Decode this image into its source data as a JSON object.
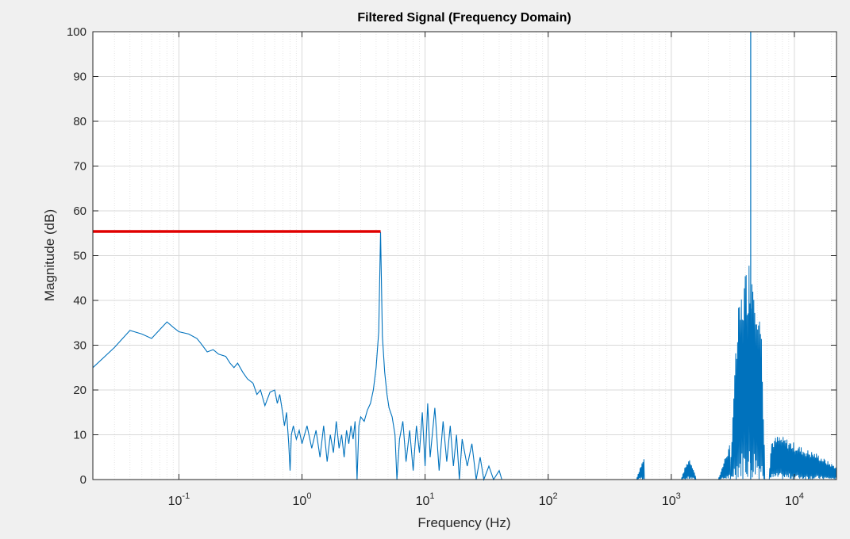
{
  "chart_data": {
    "type": "line",
    "title": "Filtered Signal (Frequency Domain)",
    "xlabel": "Frequency (Hz)",
    "ylabel": "Magnitude (dB)",
    "xscale": "log",
    "xlim": [
      0.02,
      22000
    ],
    "ylim": [
      0,
      100
    ],
    "grid": true,
    "minor_grid": true,
    "x_ticks": [
      {
        "value": 0.1,
        "base": "10",
        "exp": "-1"
      },
      {
        "value": 1,
        "base": "10",
        "exp": "0"
      },
      {
        "value": 10,
        "base": "10",
        "exp": "1"
      },
      {
        "value": 100,
        "base": "10",
        "exp": "2"
      },
      {
        "value": 1000,
        "base": "10",
        "exp": "3"
      },
      {
        "value": 10000,
        "base": "10",
        "exp": "4"
      }
    ],
    "y_ticks": [
      {
        "value": 0,
        "label": "0"
      },
      {
        "value": 10,
        "label": "10"
      },
      {
        "value": 20,
        "label": "20"
      },
      {
        "value": 30,
        "label": "30"
      },
      {
        "value": 40,
        "label": "40"
      },
      {
        "value": 50,
        "label": "50"
      },
      {
        "value": 60,
        "label": "60"
      },
      {
        "value": 70,
        "label": "70"
      },
      {
        "value": 80,
        "label": "80"
      },
      {
        "value": 90,
        "label": "90"
      },
      {
        "value": 100,
        "label": "100"
      }
    ],
    "colors": {
      "spectrum": "#0072bd",
      "marker": "#e00000",
      "grid": "#d9d9d9",
      "axes": "#262626",
      "background": "#ffffff"
    },
    "series": [
      {
        "style": "line",
        "points": [
          [
            0.02,
            25
          ],
          [
            0.03,
            29.5
          ],
          [
            0.04,
            33.3
          ],
          [
            0.05,
            32.5
          ],
          [
            0.06,
            31.5
          ],
          [
            0.07,
            33.5
          ],
          [
            0.08,
            35.2
          ],
          [
            0.09,
            34
          ],
          [
            0.1,
            33
          ],
          [
            0.12,
            32.5
          ],
          [
            0.14,
            31.5
          ],
          [
            0.15,
            30.5
          ],
          [
            0.17,
            28.5
          ],
          [
            0.19,
            29
          ],
          [
            0.21,
            28
          ],
          [
            0.24,
            27.5
          ],
          [
            0.26,
            26
          ],
          [
            0.28,
            25
          ],
          [
            0.3,
            26
          ],
          [
            0.33,
            24
          ],
          [
            0.36,
            22.5
          ],
          [
            0.4,
            21.5
          ],
          [
            0.43,
            19
          ],
          [
            0.46,
            20
          ],
          [
            0.5,
            16.5
          ],
          [
            0.55,
            19.5
          ],
          [
            0.6,
            20
          ],
          [
            0.63,
            17
          ],
          [
            0.66,
            19
          ],
          [
            0.7,
            14.5
          ],
          [
            0.72,
            12
          ],
          [
            0.75,
            15
          ],
          [
            0.78,
            8
          ],
          [
            0.8,
            2
          ],
          [
            0.82,
            10
          ],
          [
            0.85,
            12
          ],
          [
            0.9,
            9
          ],
          [
            0.95,
            11
          ],
          [
            1.0,
            8
          ],
          [
            1.1,
            12
          ],
          [
            1.2,
            7
          ],
          [
            1.3,
            11
          ],
          [
            1.4,
            5
          ],
          [
            1.5,
            12
          ],
          [
            1.6,
            4
          ],
          [
            1.7,
            10
          ],
          [
            1.8,
            6
          ],
          [
            1.9,
            13
          ],
          [
            2.0,
            7
          ],
          [
            2.1,
            10
          ],
          [
            2.2,
            5
          ],
          [
            2.3,
            11
          ],
          [
            2.4,
            8
          ],
          [
            2.5,
            12
          ],
          [
            2.6,
            9
          ],
          [
            2.7,
            13
          ],
          [
            2.8,
            0
          ],
          [
            2.9,
            12
          ],
          [
            3.0,
            14
          ],
          [
            3.2,
            13
          ],
          [
            3.4,
            15.5
          ],
          [
            3.6,
            17
          ],
          [
            3.8,
            20
          ],
          [
            4.0,
            25
          ],
          [
            4.2,
            33
          ],
          [
            4.35,
            55.3
          ],
          [
            4.5,
            32
          ],
          [
            4.7,
            24
          ],
          [
            4.9,
            19
          ],
          [
            5.1,
            16
          ],
          [
            5.4,
            14
          ],
          [
            5.7,
            10
          ],
          [
            5.9,
            0
          ],
          [
            6.2,
            9
          ],
          [
            6.6,
            13
          ],
          [
            7.0,
            4
          ],
          [
            7.5,
            11
          ],
          [
            8.0,
            2
          ],
          [
            8.5,
            12
          ],
          [
            9.0,
            6
          ],
          [
            9.5,
            15
          ],
          [
            10,
            3
          ],
          [
            10.5,
            17
          ],
          [
            11,
            5
          ],
          [
            12,
            16
          ],
          [
            13,
            2
          ],
          [
            14,
            13
          ],
          [
            15,
            4
          ],
          [
            16,
            12
          ],
          [
            17,
            3
          ],
          [
            18,
            10
          ],
          [
            19,
            0
          ],
          [
            20,
            9
          ],
          [
            22,
            3
          ],
          [
            24,
            8
          ],
          [
            26,
            0
          ],
          [
            28,
            5
          ],
          [
            30,
            0
          ],
          [
            33,
            3
          ],
          [
            36,
            0
          ],
          [
            40,
            2
          ],
          [
            42,
            0
          ],
          [
            600,
            0
          ]
        ]
      },
      {
        "style": "band",
        "bands": [
          {
            "x": [
              520,
              610
            ],
            "envelope": [
              [
                520,
                0
              ],
              [
                560,
                3
              ],
              [
                600,
                5
              ],
              [
                640,
                0
              ]
            ]
          },
          {
            "x": [
              1200,
              1600
            ],
            "envelope": [
              [
                1200,
                0
              ],
              [
                1300,
                3
              ],
              [
                1400,
                5
              ],
              [
                1500,
                3
              ],
              [
                1600,
                0
              ]
            ]
          },
          {
            "x": [
              2400,
              3000
            ],
            "envelope": [
              [
                2400,
                0
              ],
              [
                2600,
                3
              ],
              [
                2800,
                6
              ],
              [
                3000,
                8
              ]
            ]
          },
          {
            "x": [
              3000,
              5800
            ],
            "envelope": [
              [
                3000,
                0
              ],
              [
                3200,
                20
              ],
              [
                3500,
                38
              ],
              [
                3900,
                46
              ],
              [
                4300,
                50
              ],
              [
                4600,
                50
              ],
              [
                5000,
                44
              ],
              [
                5400,
                32
              ],
              [
                5800,
                0
              ]
            ]
          },
          {
            "x": [
              6200,
              22000
            ],
            "envelope": [
              [
                6200,
                0
              ],
              [
                6500,
                9
              ],
              [
                7500,
                10
              ],
              [
                9000,
                9
              ],
              [
                12000,
                7
              ],
              [
                15000,
                6
              ],
              [
                19000,
                4
              ],
              [
                22000,
                3
              ]
            ]
          }
        ]
      },
      {
        "style": "spike",
        "points": [
          [
            4420,
            0
          ],
          [
            4420,
            100
          ]
        ]
      }
    ],
    "annotations": [
      {
        "type": "hline",
        "y": 55.4,
        "x": [
          0.02,
          4.35
        ],
        "color": "#e00000"
      }
    ]
  }
}
